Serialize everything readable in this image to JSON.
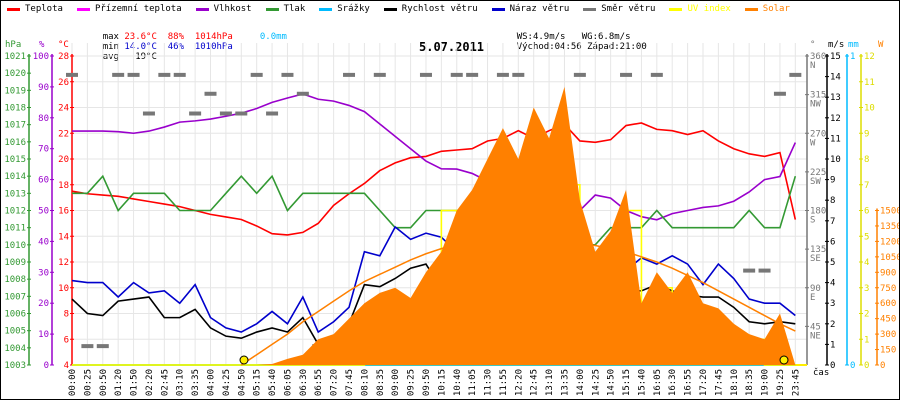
{
  "legend": [
    {
      "label": "Teplota",
      "color": "#ff0000"
    },
    {
      "label": "Přízemní teplota",
      "color": "#ff00ff"
    },
    {
      "label": "Vlhkost",
      "color": "#9900cc"
    },
    {
      "label": "Tlak",
      "color": "#339933"
    },
    {
      "label": "Srážky",
      "color": "#00bbff"
    },
    {
      "label": "Rychlost větru",
      "color": "#000000"
    },
    {
      "label": "Náraz větru",
      "color": "#0000cc"
    },
    {
      "label": "Směr větru",
      "color": "#777777"
    },
    {
      "label": "UV index",
      "color": "#ffff00"
    },
    {
      "label": "Solar",
      "color": "#ff8000"
    }
  ],
  "stats": {
    "max_label": "max",
    "max_temp": "23.6°C",
    "max_hum": "88%",
    "max_press": "1014hPa",
    "max_rain": "0.0mm",
    "min_label": "min",
    "min_temp": "14.0°C",
    "min_hum": "46%",
    "min_press": "1010hPa",
    "avg_label": "avg",
    "avg_temp": "19°C",
    "ws": "WS:4.9m/s",
    "wg": "WG:6.8m/s",
    "sunrise": "Východ:04:56",
    "sunset": "Západ:21:00"
  },
  "chart_data": {
    "type": "line",
    "title": "5.07.2011",
    "xlabel": "čas",
    "x": [
      "00:00",
      "00:25",
      "00:50",
      "01:20",
      "01:50",
      "02:20",
      "02:45",
      "03:10",
      "03:35",
      "04:00",
      "04:25",
      "04:50",
      "05:15",
      "05:40",
      "06:05",
      "06:30",
      "06:55",
      "07:20",
      "07:45",
      "08:10",
      "08:35",
      "09:00",
      "09:25",
      "09:50",
      "10:15",
      "10:40",
      "11:05",
      "11:30",
      "11:55",
      "12:20",
      "12:45",
      "13:10",
      "13:35",
      "14:00",
      "14:25",
      "14:50",
      "15:15",
      "15:40",
      "16:05",
      "16:30",
      "16:55",
      "17:20",
      "17:45",
      "18:10",
      "18:35",
      "19:00",
      "19:25",
      "23:45"
    ],
    "axes": {
      "pressure": {
        "unit": "hPa",
        "range": [
          1003,
          1021
        ],
        "ticks": [
          1003,
          1004,
          1005,
          1006,
          1007,
          1008,
          1009,
          1010,
          1011,
          1012,
          1013,
          1014,
          1015,
          1016,
          1017,
          1018,
          1019,
          1020,
          1021
        ]
      },
      "humidity": {
        "unit": "%",
        "range": [
          0,
          100
        ],
        "ticks": [
          0,
          10,
          20,
          30,
          40,
          50,
          60,
          70,
          80,
          90,
          100
        ]
      },
      "temperature": {
        "unit": "°C",
        "range": [
          4,
          28
        ],
        "ticks": [
          4,
          6,
          8,
          10,
          12,
          14,
          16,
          18,
          20,
          22,
          24,
          26,
          28
        ]
      },
      "direction": {
        "unit": "°",
        "range": [
          0,
          360
        ],
        "ticks": [
          {
            "v": 45,
            "t": "45",
            "d": "NE"
          },
          {
            "v": 90,
            "t": "90",
            "d": "E"
          },
          {
            "v": 135,
            "t": "135",
            "d": "SE"
          },
          {
            "v": 180,
            "t": "180",
            "d": "S"
          },
          {
            "v": 225,
            "t": "225",
            "d": "SW"
          },
          {
            "v": 270,
            "t": "270",
            "d": "W"
          },
          {
            "v": 315,
            "t": "315",
            "d": "NW"
          },
          {
            "v": 360,
            "t": "360",
            "d": "N"
          }
        ]
      },
      "wind": {
        "unit": "m/s",
        "range": [
          0,
          15
        ],
        "ticks": [
          0,
          1,
          2,
          3,
          4,
          5,
          6,
          7,
          8,
          9,
          10,
          11,
          12,
          13,
          14,
          15
        ]
      },
      "rain": {
        "unit": "mm",
        "range": [
          0,
          1
        ],
        "ticks": [
          0,
          1
        ]
      },
      "uv": {
        "unit": "",
        "range": [
          0,
          12
        ],
        "ticks": [
          0,
          1,
          2,
          3,
          4,
          5,
          6,
          7,
          8,
          9,
          10,
          11,
          12
        ]
      },
      "solar": {
        "unit": "W",
        "range": [
          0,
          3000
        ],
        "ticks": [
          0,
          150,
          300,
          450,
          600,
          750,
          900,
          1050,
          1200,
          1350,
          1500
        ]
      }
    },
    "grid": true,
    "series": [
      {
        "name": "Teplota",
        "axis": "temperature",
        "color": "#ff0000",
        "values": [
          17.5,
          17.3,
          17.2,
          17.1,
          16.9,
          16.7,
          16.5,
          16.3,
          16.0,
          15.7,
          15.5,
          15.3,
          14.8,
          14.2,
          14.1,
          14.3,
          15.0,
          16.4,
          17.3,
          18.1,
          19.1,
          19.7,
          20.1,
          20.2,
          20.6,
          20.7,
          20.8,
          21.4,
          21.6,
          22.2,
          21.6,
          22.2,
          22.7,
          21.4,
          21.3,
          21.5,
          22.6,
          22.8,
          22.3,
          22.2,
          21.9,
          22.2,
          21.4,
          20.8,
          20.4,
          20.2,
          20.5,
          15.3
        ]
      },
      {
        "name": "Vlhkost",
        "axis": "humidity",
        "color": "#9900cc",
        "values": [
          75.7,
          75.7,
          75.7,
          75.5,
          75,
          75.7,
          77,
          78.6,
          79,
          79.6,
          80.5,
          81.5,
          83,
          85,
          86.4,
          87.7,
          86,
          85.4,
          84,
          82,
          78,
          74,
          70,
          66,
          63.5,
          63.4,
          62,
          59.5,
          58,
          56,
          54.5,
          55,
          53,
          50,
          55,
          54,
          50,
          48,
          47,
          49,
          50,
          51,
          51.5,
          53,
          56,
          60,
          61,
          72
        ]
      },
      {
        "name": "Tlak",
        "axis": "pressure",
        "color": "#339933",
        "values": [
          1013,
          1013,
          1014,
          1012,
          1013,
          1013,
          1013,
          1012,
          1012,
          1012,
          1013,
          1014,
          1013,
          1014,
          1012,
          1013,
          1013,
          1013,
          1013,
          1013,
          1012,
          1011,
          1011,
          1012,
          1012,
          1012,
          1012,
          1012,
          1011,
          1011,
          1011,
          1011,
          1010,
          1010,
          1010,
          1011,
          1011,
          1011,
          1012,
          1011,
          1011,
          1011,
          1011,
          1011,
          1012,
          1011,
          1011,
          1014
        ]
      },
      {
        "name": "Srážky",
        "axis": "rain",
        "color": "#00bbff",
        "values": [
          0,
          0,
          0,
          0,
          0,
          0,
          0,
          0,
          0,
          0,
          0,
          0,
          0,
          0,
          0,
          0,
          0,
          0,
          0,
          0,
          0,
          0,
          0,
          0,
          0,
          0,
          0,
          0,
          0,
          0,
          0,
          0,
          0,
          0,
          0,
          0,
          0,
          0,
          0,
          0,
          0,
          0,
          0,
          0,
          0,
          0,
          0,
          0
        ]
      },
      {
        "name": "Rychlost větru",
        "axis": "wind",
        "color": "#000000",
        "values": [
          3.2,
          2.5,
          2.4,
          3.1,
          3.2,
          3.3,
          2.3,
          2.3,
          2.7,
          1.8,
          1.4,
          1.3,
          1.6,
          1.8,
          1.6,
          2.3,
          1.0,
          0.8,
          2.0,
          3.9,
          3.8,
          4.2,
          4.7,
          4.9,
          3.7,
          3.6,
          3.1,
          4.3,
          3.0,
          3.9,
          3.7,
          4.1,
          3.0,
          3.9,
          3.5,
          3.0,
          3.6,
          3.6,
          3.9,
          3.6,
          3.4,
          3.3,
          3.3,
          2.8,
          2.1,
          2.0,
          2.1,
          2.0
        ]
      },
      {
        "name": "Náraz větru",
        "axis": "wind",
        "color": "#0000cc",
        "values": [
          4.1,
          4.0,
          4.0,
          3.3,
          4.0,
          3.5,
          3.6,
          3.0,
          3.9,
          2.3,
          1.8,
          1.6,
          2.0,
          2.6,
          2.0,
          3.3,
          1.6,
          2.1,
          2.8,
          5.5,
          5.3,
          6.7,
          6.1,
          6.4,
          6.2,
          5.5,
          4.3,
          4.9,
          3.6,
          5.2,
          5.0,
          5.2,
          3.9,
          5.3,
          5.0,
          3.6,
          4.6,
          5.2,
          4.9,
          5.3,
          4.9,
          3.9,
          4.9,
          4.2,
          3.2,
          3.0,
          3.0,
          2.4
        ]
      },
      {
        "name": "Směr větru",
        "axis": "direction",
        "color": "#777777",
        "style": "dash",
        "values": [
          338,
          22,
          22,
          338,
          338,
          293,
          338,
          338,
          293,
          316,
          293,
          293,
          338,
          293,
          338,
          316,
          22,
          22,
          338,
          22,
          338,
          10,
          10,
          338,
          10,
          338,
          338,
          10,
          338,
          338,
          10,
          10,
          10,
          338,
          60,
          10,
          338,
          10,
          338,
          10,
          10,
          60,
          10,
          10,
          110,
          110,
          316,
          338
        ]
      },
      {
        "name": "UV index",
        "axis": "uv",
        "color": "#ffff00",
        "style": "step",
        "values": [
          0,
          0,
          0,
          0,
          0,
          0,
          0,
          0,
          0,
          0,
          0,
          0,
          0,
          0,
          0,
          0,
          0,
          0,
          0,
          0.5,
          0.5,
          1.5,
          2,
          2,
          6,
          2,
          6,
          1,
          5,
          7,
          5,
          7,
          7,
          3,
          2,
          2,
          6,
          2,
          3,
          2,
          2,
          2,
          1,
          1,
          1,
          0,
          0,
          0
        ]
      },
      {
        "name": "Solar",
        "axis": "solar",
        "color": "#ff8000",
        "style": "area",
        "values": [
          0,
          0,
          0,
          0,
          0,
          0,
          0,
          0,
          0,
          0,
          0,
          0,
          0,
          10,
          60,
          100,
          250,
          300,
          450,
          600,
          700,
          750,
          650,
          900,
          1100,
          1500,
          1700,
          2000,
          2300,
          2000,
          2500,
          2200,
          2700,
          1600,
          1100,
          1300,
          1700,
          600,
          900,
          700,
          900,
          600,
          550,
          400,
          300,
          250,
          500,
          0
        ]
      },
      {
        "axis": "solar",
        "color": "#ff8000",
        "style": "thin",
        "values": [
          null,
          null,
          null,
          null,
          null,
          null,
          null,
          null,
          null,
          null,
          null,
          0,
          100,
          200,
          300,
          420,
          520,
          620,
          720,
          810,
          880,
          950,
          1020,
          1080,
          1130,
          1170,
          1200,
          1220,
          1230,
          1230,
          1230,
          1220,
          1200,
          1180,
          1160,
          1130,
          1100,
          1050,
          1000,
          940,
          870,
          800,
          720,
          640,
          560,
          480,
          400,
          330
        ]
      }
    ],
    "markers": [
      {
        "label": "sunrise",
        "time": "04:56"
      },
      {
        "label": "sunset",
        "time": "21:00"
      }
    ]
  }
}
